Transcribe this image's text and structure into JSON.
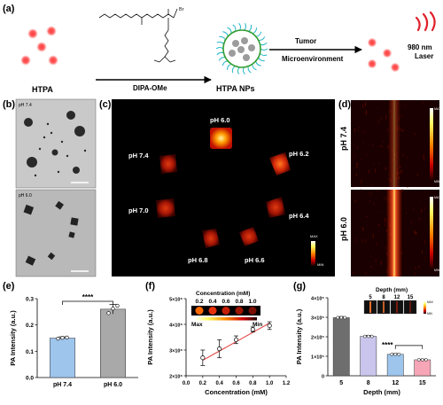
{
  "panels": {
    "a": {
      "label": "(a)",
      "left_caption": "HTPA",
      "polymer_caption": "DIPA-OMe",
      "center_caption": "HTPA NPs",
      "arrow_top": "Tumor",
      "arrow_bottom": "Microenvironment",
      "laser_line1": "980 nm",
      "laser_line2": "Laser",
      "polymer_br": "Br"
    },
    "b": {
      "label": "(b)",
      "top_ph": "pH 7.4",
      "bottom_ph": "pH 6.0"
    },
    "c": {
      "label": "(c)",
      "ph_labels": [
        "pH 6.0",
        "pH 6.2",
        "pH 6.4",
        "pH 6.6",
        "pH 6.8",
        "pH 7.0",
        "pH 7.4"
      ],
      "scale_max": "MAX",
      "scale_min": "MIN"
    },
    "d": {
      "label": "(d)",
      "top_ph": "pH 7.4",
      "bottom_ph": "pH 6.0",
      "scale_max": "MAX",
      "scale_min": "MIN"
    },
    "e": {
      "label": "(e)",
      "significance": "****"
    },
    "f": {
      "label": "(f)",
      "inset_title": "Concentration  (mM)",
      "inset_values": [
        "0.2",
        "0.4",
        "0.6",
        "0.8",
        "1.0"
      ],
      "inset_max": "Max",
      "inset_min": "Min"
    },
    "g": {
      "label": "(g)",
      "inset_title": "Depth  (mm)",
      "inset_values": [
        "5",
        "8",
        "12",
        "15"
      ],
      "inset_max": "MAX",
      "inset_min": "MIN",
      "significance": "****"
    }
  },
  "chart_data": [
    {
      "panel": "e",
      "type": "bar",
      "categories": [
        "pH 7.4",
        "pH 6.0"
      ],
      "series": [
        {
          "values": [
            0.15,
            0.26
          ],
          "errors": [
            0.005,
            0.018
          ]
        }
      ],
      "points": [
        [
          0.148,
          0.151,
          0.152
        ],
        [
          0.245,
          0.262,
          0.273
        ]
      ],
      "colors": [
        "#9ec5ec",
        "#a9a9a9"
      ],
      "ylabel": "PA Intensity (a.u.)",
      "ylim": [
        0.0,
        0.3
      ],
      "yticks": [
        "0.0",
        "0.1",
        "0.2",
        "0.3"
      ]
    },
    {
      "panel": "f",
      "type": "scatter",
      "x": [
        0.2,
        0.4,
        0.6,
        0.8,
        1.0
      ],
      "y": [
        2700000.0,
        3050000.0,
        3400000.0,
        3800000.0,
        3950000.0
      ],
      "errors": [
        300000.0,
        350000.0,
        150000.0,
        100000.0,
        150000.0
      ],
      "fit": {
        "x": [
          0.2,
          1.0
        ],
        "y": [
          2600000.0,
          4050000.0
        ]
      },
      "xlabel": "Concentration (mM)",
      "ylabel": "PA Intensity (a.u.)",
      "xlim": [
        0,
        1.2
      ],
      "ylim": [
        2000000.0,
        5000000.0
      ],
      "xticks": [
        "0.0",
        "0.2",
        "0.4",
        "0.6",
        "0.8",
        "1.0",
        "1.2"
      ],
      "yticks": [
        "2×10⁶",
        "3×10⁶",
        "4×10⁶",
        "5×10⁶"
      ]
    },
    {
      "panel": "g",
      "type": "bar",
      "categories": [
        "5",
        "8",
        "12",
        "15"
      ],
      "series": [
        {
          "values": [
            298000.0,
            202000.0,
            110000.0,
            82000.0
          ],
          "errors": [
            6000.0,
            5000.0,
            4000.0,
            3000.0
          ]
        }
      ],
      "colors": [
        "#6e6e6e",
        "#c9c5ec",
        "#9ec5ec",
        "#f7a6b7"
      ],
      "xlabel": "Depth (mm)",
      "ylabel": "PA Intensity (a.u.)",
      "ylim": [
        0,
        400000.0
      ],
      "yticks": [
        "0",
        "1×10⁵",
        "2×10⁵",
        "3×10⁵",
        "4×10⁵"
      ]
    }
  ]
}
